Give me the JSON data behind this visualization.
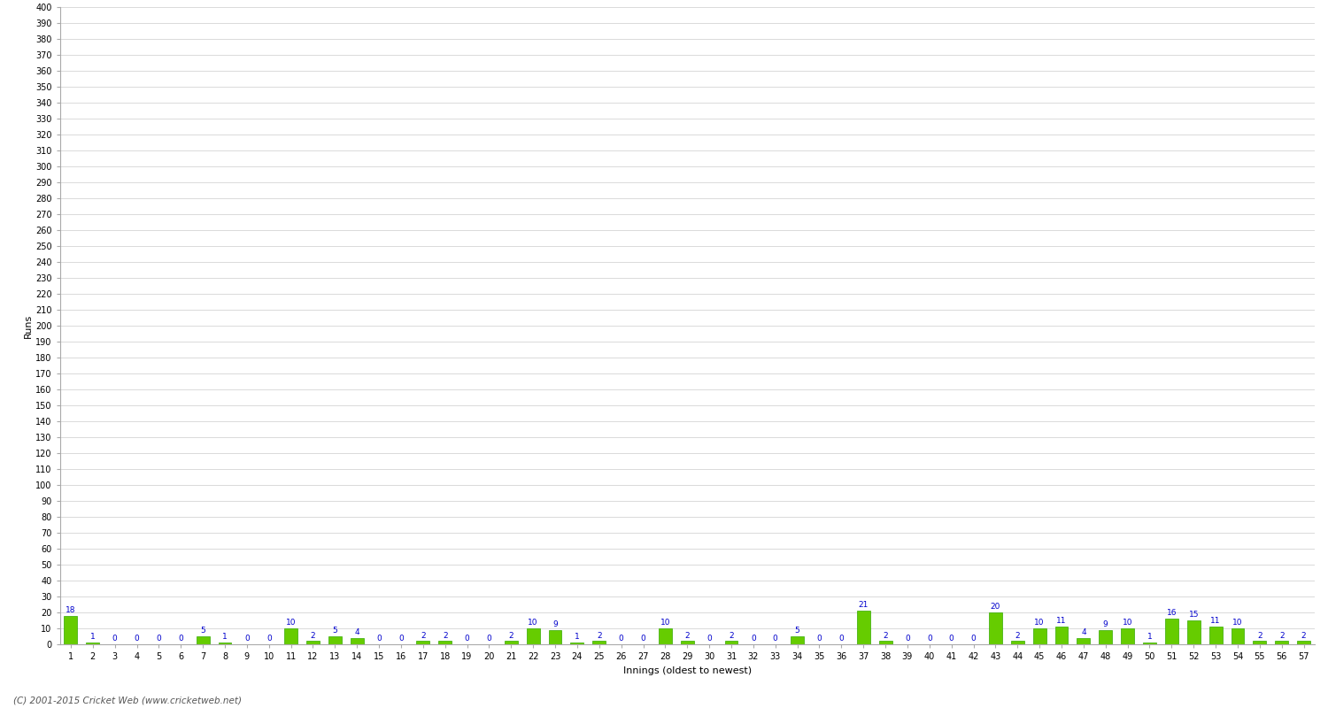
{
  "xlabel": "Innings (oldest to newest)",
  "ylabel": "Runs",
  "background_color": "#ffffff",
  "bar_color": "#66cc00",
  "bar_edge_color": "#33aa00",
  "label_color": "#0000cc",
  "grid_color": "#cccccc",
  "ylim": [
    0,
    400
  ],
  "ytick_step": 10,
  "values": [
    18,
    1,
    0,
    0,
    0,
    0,
    5,
    1,
    0,
    0,
    10,
    2,
    5,
    4,
    0,
    0,
    2,
    2,
    0,
    0,
    2,
    10,
    9,
    1,
    2,
    0,
    0,
    10,
    2,
    0,
    2,
    0,
    0,
    5,
    0,
    0,
    21,
    2,
    0,
    0,
    0,
    0,
    20,
    2,
    10,
    11,
    4,
    9,
    10,
    1,
    16,
    15,
    11,
    10,
    2,
    2,
    2
  ],
  "footnote": "(C) 2001-2015 Cricket Web (www.cricketweb.net)"
}
